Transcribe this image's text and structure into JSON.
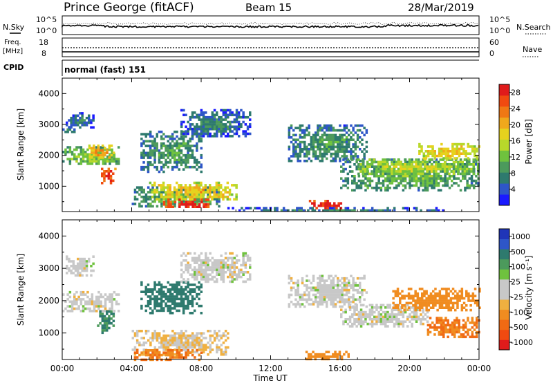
{
  "header": {
    "station": "Prince George (fitACF)",
    "beam": "Beam 15",
    "date": "28/Mar/2019"
  },
  "left_labels": {
    "nsky": "N.Sky",
    "freq_line1": "Freq.",
    "freq_line2": "[MHz]",
    "cpid": "CPID"
  },
  "right_labels": {
    "nsearch": "N.Search",
    "nave": "Nave"
  },
  "strip_ticks": {
    "noise_left_top": "10^5",
    "noise_left_bottom": "10^0",
    "noise_right_top": "10^5",
    "noise_right_bottom": "10^0",
    "freq_left_top": "18",
    "freq_left_bottom": "8",
    "nave_right_top": "60",
    "nave_right_bottom": "0"
  },
  "cpid_text": "normal (fast) 151",
  "x_axis": {
    "title": "Time UT",
    "ticks": [
      "00:00",
      "04:00",
      "08:00",
      "12:00",
      "16:00",
      "20:00",
      "00:00"
    ]
  },
  "colorbars": {
    "power": {
      "label": "Power [dB]",
      "ticks": [
        "4",
        "8",
        "12",
        "16",
        "20",
        "24",
        "28"
      ],
      "colors": [
        "#1a1aff",
        "#2e56c8",
        "#2e7a6e",
        "#4c9a5c",
        "#6fc23e",
        "#b8d82a",
        "#e6d21e",
        "#f0a81c",
        "#f07814",
        "#f04a10",
        "#e01b1b"
      ]
    },
    "velocity": {
      "label": "Velocity [m s⁻¹]",
      "ticks": [
        "1000",
        "500",
        "100",
        "25",
        "-25",
        "-100",
        "-500",
        "-1000"
      ],
      "colors": [
        "#2035b8",
        "#2e56c8",
        "#2e7a6e",
        "#4c9a5c",
        "#6fc23e",
        "#c8c8c8",
        "#c8c8c8",
        "#f0b040",
        "#f08c20",
        "#f06a14",
        "#f04a10",
        "#e01b1b"
      ]
    }
  },
  "chart_data": [
    {
      "type": "heatmap",
      "title": "Power",
      "xlabel": "Time UT",
      "ylabel": "Slant Range [km]",
      "xlim": [
        "00:00",
        "24:00"
      ],
      "ylim": [
        180,
        4500
      ],
      "yticks": [
        1000,
        2000,
        3000,
        4000
      ],
      "colorbar_label": "Power [dB]",
      "colorbar_range": [
        0,
        30
      ],
      "regions": [
        {
          "t0": 0.0,
          "t1": 0.7,
          "r0": 2750,
          "r1": 2950,
          "value": 6
        },
        {
          "t0": 0.2,
          "t1": 1.8,
          "r0": 2900,
          "r1": 3400,
          "value": 6
        },
        {
          "t0": 0.0,
          "t1": 3.2,
          "r0": 1700,
          "r1": 2300,
          "value": 12
        },
        {
          "t0": 1.5,
          "t1": 3.0,
          "r0": 1900,
          "r1": 2350,
          "value": 20
        },
        {
          "t0": 2.1,
          "t1": 3.0,
          "r0": 1100,
          "r1": 1600,
          "value": 26
        },
        {
          "t0": 4.0,
          "t1": 9.0,
          "r0": 350,
          "r1": 1000,
          "value": 10
        },
        {
          "t0": 5.0,
          "t1": 10.0,
          "r0": 600,
          "r1": 1150,
          "value": 18
        },
        {
          "t0": 5.8,
          "t1": 8.6,
          "r0": 330,
          "r1": 600,
          "value": 28
        },
        {
          "t0": 4.5,
          "t1": 8.0,
          "r0": 1500,
          "r1": 2800,
          "value": 8
        },
        {
          "t0": 6.8,
          "t1": 10.8,
          "r0": 2600,
          "r1": 3500,
          "value": 6
        },
        {
          "t0": 9.0,
          "t1": 22.0,
          "r0": 180,
          "r1": 330,
          "value": 6
        },
        {
          "t0": 14.2,
          "t1": 16.1,
          "r0": 330,
          "r1": 560,
          "value": 28
        },
        {
          "t0": 13.0,
          "t1": 17.5,
          "r0": 1800,
          "r1": 3000,
          "value": 8
        },
        {
          "t0": 16.0,
          "t1": 24.0,
          "r0": 900,
          "r1": 1900,
          "value": 10
        },
        {
          "t0": 17.0,
          "t1": 24.0,
          "r0": 1400,
          "r1": 1900,
          "value": 14
        },
        {
          "t0": 20.5,
          "t1": 24.0,
          "r0": 1900,
          "r1": 2400,
          "value": 18
        }
      ]
    },
    {
      "type": "heatmap",
      "title": "Velocity",
      "xlabel": "Time UT",
      "ylabel": "Slant Range [km]",
      "xlim": [
        "00:00",
        "24:00"
      ],
      "ylim": [
        180,
        4500
      ],
      "yticks": [
        1000,
        2000,
        3000,
        4000
      ],
      "colorbar_label": "Velocity [m s⁻¹]",
      "colorbar_range": [
        -1000,
        1000
      ],
      "regions": [
        {
          "t0": 0.0,
          "t1": 3.2,
          "r0": 1700,
          "r1": 2300,
          "value": 0
        },
        {
          "t0": 0.2,
          "t1": 1.8,
          "r0": 2750,
          "r1": 3400,
          "value": 0
        },
        {
          "t0": 2.0,
          "t1": 3.0,
          "r0": 1000,
          "r1": 1700,
          "value": 100
        },
        {
          "t0": 4.0,
          "t1": 9.5,
          "r0": 350,
          "r1": 1100,
          "value": -25
        },
        {
          "t0": 4.5,
          "t1": 8.0,
          "r0": 1600,
          "r1": 2600,
          "value": 150
        },
        {
          "t0": 6.8,
          "t1": 10.8,
          "r0": 2600,
          "r1": 3500,
          "value": 0
        },
        {
          "t0": 13.0,
          "t1": 17.5,
          "r0": 1800,
          "r1": 2800,
          "value": 0
        },
        {
          "t0": 14.0,
          "t1": 16.5,
          "r0": 200,
          "r1": 450,
          "value": -150
        },
        {
          "t0": 16.0,
          "t1": 21.0,
          "r0": 1200,
          "r1": 1900,
          "value": 0
        },
        {
          "t0": 19.0,
          "t1": 24.0,
          "r0": 1700,
          "r1": 2400,
          "value": -200
        },
        {
          "t0": 21.0,
          "t1": 24.0,
          "r0": 900,
          "r1": 1500,
          "value": -300
        },
        {
          "t0": 4.0,
          "t1": 8.0,
          "r0": 200,
          "r1": 500,
          "value": -300
        }
      ]
    }
  ]
}
